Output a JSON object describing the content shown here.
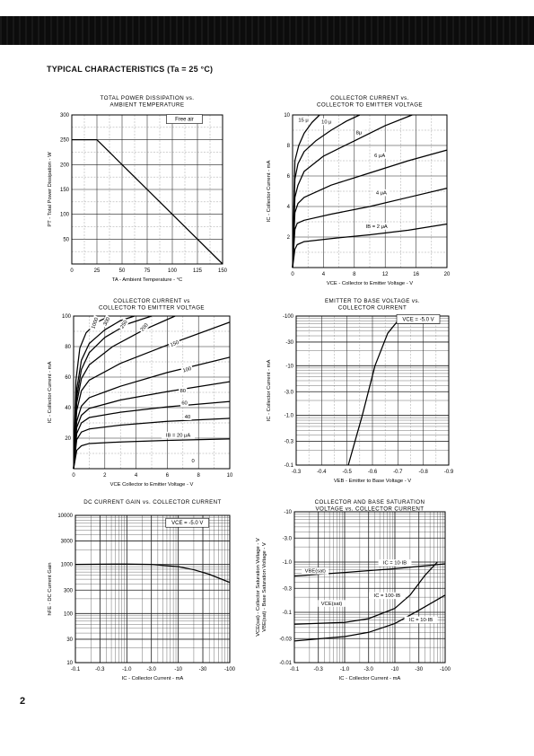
{
  "page": {
    "heading": "TYPICAL CHARACTERISTICS (Ta = 25 °C)",
    "page_number": "2"
  },
  "chart_data": [
    {
      "id": "c1",
      "type": "line",
      "title": [
        "TOTAL POWER DISSIPATION vs.",
        "AMBIENT TEMPERATURE"
      ],
      "xlabel": "TA - Ambient Temperature - °C",
      "ylabel": "PT - Total Power Dissipation - W",
      "xlim": [
        0,
        150
      ],
      "ylim": [
        0,
        300
      ],
      "xticks": [
        0,
        25,
        50,
        75,
        100,
        125,
        150
      ],
      "xtick_labels": [
        "0",
        "25",
        "50",
        "75",
        "100",
        "125",
        "150"
      ],
      "yticks": [
        0,
        50,
        100,
        150,
        200,
        250,
        300
      ],
      "ytick_labels": [
        "",
        "50",
        "100",
        "150",
        "200",
        "250",
        "300"
      ],
      "annotations": [
        {
          "text": "Free air",
          "x": 112,
          "y": 288
        }
      ],
      "series": [
        {
          "x": [
            0,
            25,
            150
          ],
          "y": [
            250,
            250,
            0
          ]
        }
      ]
    },
    {
      "id": "c2",
      "type": "line",
      "title": [
        "COLLECTOR CURRENT vs.",
        "COLLECTOR TO EMITTER VOLTAGE"
      ],
      "xlabel": "VCE - Collector to Emitter Voltage - V",
      "ylabel": "IC - Collector Current - mA",
      "xlim": [
        0,
        20
      ],
      "ylim": [
        0,
        10
      ],
      "xticks": [
        0,
        4,
        8,
        12,
        16,
        20
      ],
      "xtick_labels": [
        "0",
        "4",
        "8",
        "12",
        "16",
        "20"
      ],
      "yticks": [
        0,
        2,
        4,
        6,
        8,
        10
      ],
      "ytick_labels": [
        "",
        "2",
        "4",
        "6",
        "8",
        "10"
      ],
      "series": [
        {
          "name": "IB = 2 μA",
          "x": [
            0,
            0.3,
            0.6,
            1.5,
            5,
            10,
            15,
            20
          ],
          "y": [
            0,
            1.2,
            1.5,
            1.7,
            1.9,
            2.15,
            2.45,
            2.85
          ]
        },
        {
          "name": "4 μA",
          "x": [
            0,
            0.3,
            0.6,
            1.5,
            5,
            10,
            15,
            20
          ],
          "y": [
            0,
            2.5,
            2.9,
            3.1,
            3.5,
            4.0,
            4.6,
            5.2
          ]
        },
        {
          "name": "6 μA",
          "x": [
            0,
            0.3,
            0.7,
            1.5,
            5,
            10,
            15,
            20
          ],
          "y": [
            0,
            3.6,
            4.2,
            4.6,
            5.4,
            6.2,
            7.0,
            7.7
          ]
        },
        {
          "name": "8 μA",
          "x": [
            0,
            0.3,
            0.7,
            1.5,
            4,
            8,
            12,
            15.5
          ],
          "y": [
            0,
            4.6,
            5.4,
            6.3,
            7.3,
            8.3,
            9.3,
            10
          ]
        },
        {
          "name": "10 μA",
          "x": [
            0,
            0.3,
            0.7,
            1.5,
            3,
            5,
            7,
            8.7
          ],
          "y": [
            0,
            5.8,
            6.8,
            7.6,
            8.3,
            9.0,
            9.6,
            10
          ]
        },
        {
          "name": "15 μA",
          "x": [
            0,
            0.3,
            0.8,
            1.5,
            2.5,
            3.5
          ],
          "y": [
            0,
            7.0,
            8.0,
            8.8,
            9.5,
            10
          ]
        }
      ],
      "labels": [
        {
          "text": "15 μ",
          "x": 1.4,
          "y": 9.55
        },
        {
          "text": "10 μ",
          "x": 4.4,
          "y": 9.45
        },
        {
          "text": "8μ",
          "x": 8.6,
          "y": 8.75
        },
        {
          "text": "6 μA",
          "x": 11.3,
          "y": 7.25
        },
        {
          "text": "4 μA",
          "x": 11.5,
          "y": 4.8
        },
        {
          "text": "IB = 2 μA",
          "x": 10.9,
          "y": 2.6
        }
      ]
    },
    {
      "id": "c3",
      "type": "line",
      "title": [
        "COLLECTOR CURRENT vs",
        "COLLECTOR TO EMITTER VOLTAGE"
      ],
      "xlabel": "VCE   Collector to Emitter Voltage - V",
      "ylabel": "IC - Collector Current - mA",
      "xlim": [
        0,
        10
      ],
      "ylim": [
        0,
        100
      ],
      "xticks": [
        0,
        2,
        4,
        6,
        8,
        10
      ],
      "xtick_labels": [
        "0",
        "2",
        "4",
        "6",
        "8",
        "10"
      ],
      "yticks": [
        0,
        20,
        40,
        60,
        80,
        100
      ],
      "ytick_labels": [
        "",
        "20",
        "40",
        "60",
        "80",
        "100"
      ],
      "series": [
        {
          "name": "IB = 20 μA",
          "x": [
            0,
            0.2,
            0.5,
            1,
            3,
            6,
            10
          ],
          "y": [
            0,
            12,
            15,
            16.5,
            17.5,
            18.5,
            19.5
          ]
        },
        {
          "name": "40",
          "x": [
            0,
            0.2,
            0.5,
            1,
            3,
            6,
            10
          ],
          "y": [
            0,
            19,
            24,
            26,
            28.5,
            31,
            33
          ]
        },
        {
          "name": "60",
          "x": [
            0,
            0.2,
            0.5,
            1,
            3,
            6,
            10
          ],
          "y": [
            0,
            23,
            30,
            33.5,
            37,
            40.5,
            44
          ]
        },
        {
          "name": "80",
          "x": [
            0,
            0.2,
            0.5,
            1,
            3,
            6,
            10
          ],
          "y": [
            0,
            27,
            35,
            39.5,
            45,
            50.5,
            57
          ]
        },
        {
          "name": "100",
          "x": [
            0,
            0.2,
            0.5,
            1,
            3,
            6,
            10
          ],
          "y": [
            0,
            31,
            41,
            46.5,
            54,
            63,
            73
          ]
        },
        {
          "name": "150",
          "x": [
            0,
            0.2,
            0.5,
            1,
            3,
            6,
            10
          ],
          "y": [
            0,
            38,
            51,
            58,
            69,
            81,
            96
          ]
        },
        {
          "name": "200",
          "x": [
            0,
            0.2,
            0.5,
            1,
            2.5,
            4.5,
            6.5
          ],
          "y": [
            0,
            43,
            59,
            68,
            80,
            91,
            100
          ]
        },
        {
          "name": "250",
          "x": [
            0,
            0.2,
            0.5,
            1,
            2,
            3.5,
            5
          ],
          "y": [
            0,
            47,
            65,
            76,
            86,
            95,
            100
          ]
        },
        {
          "name": "300",
          "x": [
            0,
            0.2,
            0.5,
            1,
            2,
            3,
            3.9
          ],
          "y": [
            0,
            52,
            71,
            82,
            91,
            97,
            100
          ]
        },
        {
          "name": "1000",
          "x": [
            0,
            0.15,
            0.4,
            0.8,
            1.5,
            2.3
          ],
          "y": [
            0,
            58,
            79,
            89,
            96,
            100
          ]
        }
      ],
      "labels": [
        {
          "text": "1000",
          "x": 1.45,
          "y": 95,
          "rotate": -70
        },
        {
          "text": "300",
          "x": 2.2,
          "y": 96,
          "rotate": -62
        },
        {
          "text": "250",
          "x": 3.3,
          "y": 94,
          "rotate": -57
        },
        {
          "text": "200",
          "x": 4.6,
          "y": 92,
          "rotate": -50
        },
        {
          "text": "150",
          "x": 6.5,
          "y": 81,
          "rotate": -22
        },
        {
          "text": "100",
          "x": 7.3,
          "y": 64,
          "rotate": -18
        },
        {
          "text": "80",
          "x": 7.0,
          "y": 50
        },
        {
          "text": "60",
          "x": 7.1,
          "y": 42
        },
        {
          "text": "40",
          "x": 7.3,
          "y": 33
        },
        {
          "text": "IB = 20 μA",
          "x": 6.7,
          "y": 21
        },
        {
          "text": "0",
          "x": 7.65,
          "y": 4
        }
      ]
    },
    {
      "id": "c4",
      "type": "line",
      "title": [
        "EMITTER TO BASE VOLTAGE vs.",
        "COLLECTOR CURRENT"
      ],
      "xlabel": "VEB - Emitter to Base Voltage - V",
      "ylabel": "IC - Collector Current - mA",
      "xlim": [
        -0.3,
        -0.9
      ],
      "ylim": [
        -0.1,
        -100
      ],
      "yscale": "log",
      "xticks": [
        -0.3,
        -0.4,
        -0.5,
        -0.6,
        -0.7,
        -0.8,
        -0.9
      ],
      "xtick_labels": [
        "-0.3",
        "-0.4",
        "-0.5",
        "-0.6",
        "-0.7",
        "-0.8",
        "-0.9"
      ],
      "yticks": [
        -0.1,
        -0.3,
        -1.0,
        -3.0,
        -10,
        -30,
        -100
      ],
      "ytick_labels": [
        "-0.1",
        "-0.3",
        "-1.0",
        "-3.0",
        "-10",
        "-30",
        "-100"
      ],
      "legend_box": {
        "text": "VCE = -5.0 V",
        "x": -0.78,
        "y": -80
      },
      "series": [
        {
          "name": "VCE = -5.0 V",
          "x": [
            -0.505,
            -0.56,
            -0.61,
            -0.66,
            -0.715
          ],
          "y": [
            -0.1,
            -1.0,
            -10,
            -45,
            -100
          ]
        }
      ]
    },
    {
      "id": "c5",
      "type": "line",
      "title": [
        "DC CURRENT GAIN vs. COLLECTOR CURRENT"
      ],
      "xlabel": "IC - Collector Current - mA",
      "ylabel": "hFE - DC Current Gain",
      "xscale": "log",
      "yscale": "log",
      "xlim": [
        -0.1,
        -100
      ],
      "ylim": [
        10,
        10000
      ],
      "xticks": [
        -0.1,
        -0.3,
        -1.0,
        -3.0,
        -10,
        -30,
        -100
      ],
      "xtick_labels": [
        "-0.1",
        "-0.3",
        "-1.0",
        "-3.0",
        "-10",
        "-30",
        "-100"
      ],
      "yticks": [
        10,
        30,
        100,
        300,
        1000,
        3000,
        10000
      ],
      "ytick_labels": [
        "10",
        "30",
        "100",
        "300",
        "1000",
        "3000",
        "10000"
      ],
      "legend_box": {
        "text": "VCE = -5.0 V",
        "x": -15,
        "y": 6500
      },
      "series": [
        {
          "name": "VCE = -5.0 V",
          "x": [
            -0.1,
            -0.3,
            -1,
            -3,
            -10,
            -20,
            -40,
            -100
          ],
          "y": [
            1000,
            1010,
            1020,
            1000,
            900,
            780,
            630,
            430
          ]
        }
      ]
    },
    {
      "id": "c6",
      "type": "line",
      "title": [
        "COLLECTOR AND BASE SATURATION",
        "VOLTAGE vs. COLLECTOR CURRENT"
      ],
      "xlabel": "IC - Collector Current - mA",
      "ylabel": [
        "VCE(sat) - Collector Saturation Voltage - V",
        "VBE(sat) - Base Saturation Voltage - V"
      ],
      "xscale": "log",
      "yscale": "log",
      "xlim": [
        -0.1,
        -100
      ],
      "ylim": [
        -0.01,
        -10
      ],
      "xticks": [
        -0.1,
        -0.3,
        -1.0,
        -3.0,
        -10,
        -30,
        -100
      ],
      "xtick_labels": [
        "-0.1",
        "-0.3",
        "-1.0",
        "-3.0",
        "-10",
        "-30",
        "-100"
      ],
      "yticks": [
        -0.01,
        -0.03,
        -0.1,
        -0.3,
        -1.0,
        -3.0,
        -10
      ],
      "ytick_labels": [
        "-0.01",
        "-0.03",
        "-0.1",
        "-0.3",
        "-1.0",
        "-3.0",
        "-10"
      ],
      "series": [
        {
          "name": "VBE(sat)",
          "x": [
            -0.1,
            -1,
            -10,
            -100
          ],
          "y": [
            -0.53,
            -0.62,
            -0.74,
            -0.92
          ]
        },
        {
          "name": "VCE(sat) IC = 100·IB",
          "x": [
            -0.1,
            -1,
            -3,
            -10,
            -20,
            -40,
            -70
          ],
          "y": [
            -0.058,
            -0.063,
            -0.075,
            -0.12,
            -0.22,
            -0.55,
            -1.0
          ]
        },
        {
          "name": "VCE(sat) IC = 10·IB",
          "x": [
            -0.1,
            -1,
            -3,
            -10,
            -30,
            -100
          ],
          "y": [
            -0.027,
            -0.033,
            -0.04,
            -0.06,
            -0.11,
            -0.22
          ]
        }
      ],
      "labels": [
        {
          "text": "VBE(sat)",
          "x": -0.26,
          "y": -0.62
        },
        {
          "text": "IC = 10·IB",
          "x": -10,
          "y": -0.9
        },
        {
          "text": "IC = 100·IB",
          "x": -7,
          "y": -0.2
        },
        {
          "text": "VCE(sat)",
          "x": -0.55,
          "y": -0.14
        },
        {
          "text": "IC = 10·IB",
          "x": -33,
          "y": -0.066
        }
      ]
    }
  ]
}
